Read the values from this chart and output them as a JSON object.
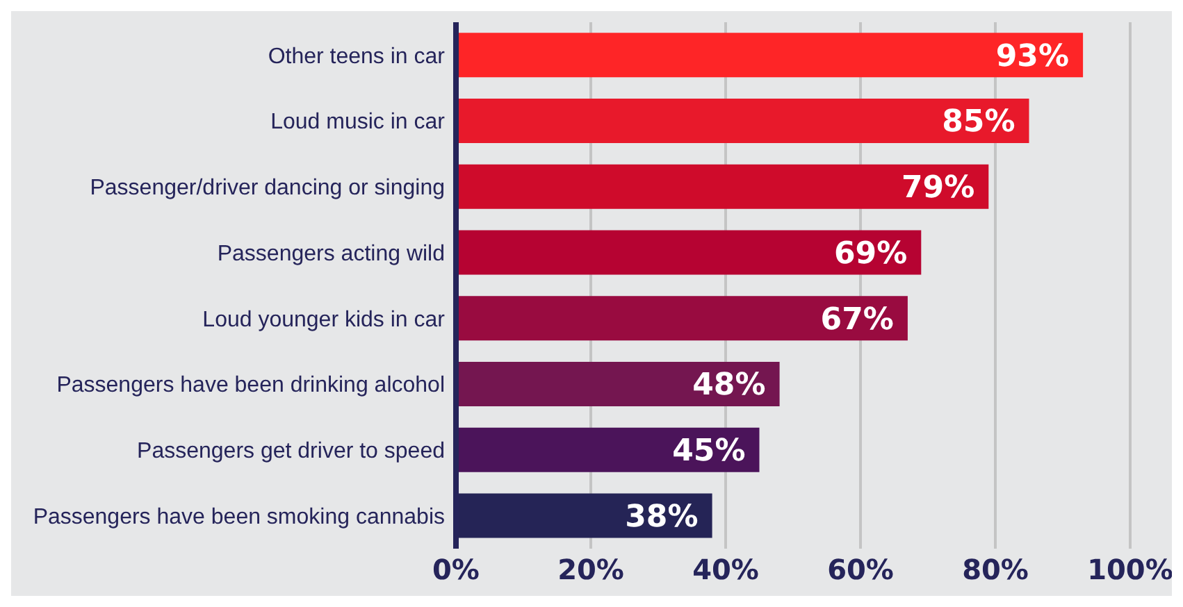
{
  "chart_data": {
    "type": "bar",
    "orientation": "horizontal",
    "categories": [
      "Other teens in car",
      "Loud music in car",
      "Passenger/driver dancing or singing",
      "Passengers acting wild",
      "Loud younger kids in car",
      "Passengers have been drinking alcohol",
      "Passengers get driver to speed",
      "Passengers have been smoking cannabis"
    ],
    "values": [
      93,
      85,
      79,
      69,
      67,
      48,
      45,
      38
    ],
    "value_labels": [
      "93%",
      "85%",
      "79%",
      "69%",
      "67%",
      "48%",
      "45%",
      "38%"
    ],
    "colors": [
      "#fe2527",
      "#e8192b",
      "#cf0b2b",
      "#b60332",
      "#990b40",
      "#741650",
      "#4b145a",
      "#252456"
    ],
    "xlim": [
      0,
      100
    ],
    "xticks": [
      {
        "value": 0,
        "label": "0%"
      },
      {
        "value": 20,
        "label": "20%"
      },
      {
        "value": 40,
        "label": "40%"
      },
      {
        "value": 60,
        "label": "60%"
      },
      {
        "value": 80,
        "label": "80%"
      },
      {
        "value": 100,
        "label": "100%"
      }
    ],
    "grid": "x"
  }
}
